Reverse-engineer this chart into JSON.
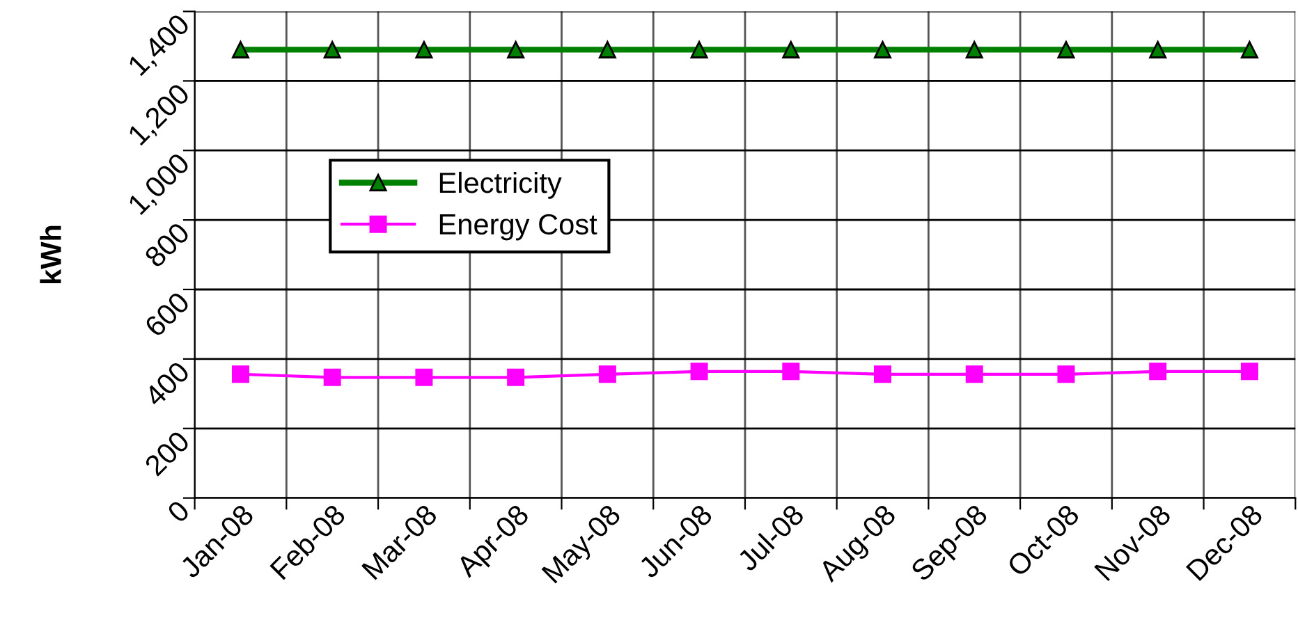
{
  "chart_data": {
    "type": "line",
    "ylabel": "kWh",
    "categories": [
      "Jan-08",
      "Feb-08",
      "Mar-08",
      "Apr-08",
      "May-08",
      "Jun-08",
      "Jul-08",
      "Aug-08",
      "Sep-08",
      "Oct-08",
      "Nov-08",
      "Dec-08"
    ],
    "series": [
      {
        "name": "Electricity",
        "color": "#008000",
        "marker": "triangle",
        "values": [
          1290,
          1290,
          1290,
          1290,
          1290,
          1290,
          1290,
          1290,
          1290,
          1290,
          1290,
          1290
        ]
      },
      {
        "name": "Energy Cost",
        "color": "#ff00ff",
        "marker": "square",
        "values": [
          356,
          347,
          347,
          347,
          356,
          364,
          364,
          356,
          356,
          356,
          364,
          364
        ]
      }
    ],
    "ylim": [
      0,
      1400
    ],
    "yticks": [
      0,
      {
        "value": 200,
        "label": "200"
      },
      {
        "value": 400,
        "label": "400"
      },
      {
        "value": 600,
        "label": "600"
      },
      {
        "value": 800,
        "label": "800"
      },
      {
        "value": 1000,
        "label": "1,000"
      },
      {
        "value": 1200,
        "label": "1,200"
      },
      {
        "value": 1400,
        "label": "1,400"
      }
    ],
    "grid": true,
    "legend": "left",
    "line_style": "solid"
  }
}
